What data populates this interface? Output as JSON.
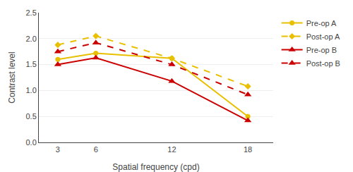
{
  "chart_data": {
    "type": "line",
    "xlabel": "Spatial frequency (cpd)",
    "ylabel": "Contrast level",
    "x": [
      3,
      6,
      12,
      18
    ],
    "series": [
      {
        "name": "Pre-op A",
        "color": "#e8c000",
        "marker": "circle",
        "line_style": "solid",
        "values": [
          1.6,
          1.72,
          1.62,
          0.5
        ]
      },
      {
        "name": "Post-op A",
        "color": "#e8c000",
        "marker": "diamond",
        "line_style": "dash",
        "values": [
          1.88,
          2.05,
          1.62,
          1.08
        ]
      },
      {
        "name": "Pre-op B",
        "color": "#cc0000",
        "marker": "triangle-up",
        "line_style": "solid",
        "values": [
          1.5,
          1.63,
          1.18,
          0.42
        ]
      },
      {
        "name": "Post-op B",
        "color": "#cc0000",
        "marker": "triangle-up",
        "line_style": "dash",
        "values": [
          1.75,
          1.92,
          1.5,
          0.92
        ]
      }
    ],
    "xlim": [
      1.5,
      20
    ],
    "xticks": [
      3,
      6,
      12,
      18
    ],
    "ylim": [
      0,
      2.5
    ],
    "yticks": [
      {
        "value": 0,
        "label": "0.0"
      },
      0.5,
      {
        "value": 1.0,
        "label": "1.0"
      },
      1.5,
      {
        "value": 2.0,
        "label": "2.0"
      },
      2.5
    ],
    "grid": "y",
    "legend": "right"
  }
}
